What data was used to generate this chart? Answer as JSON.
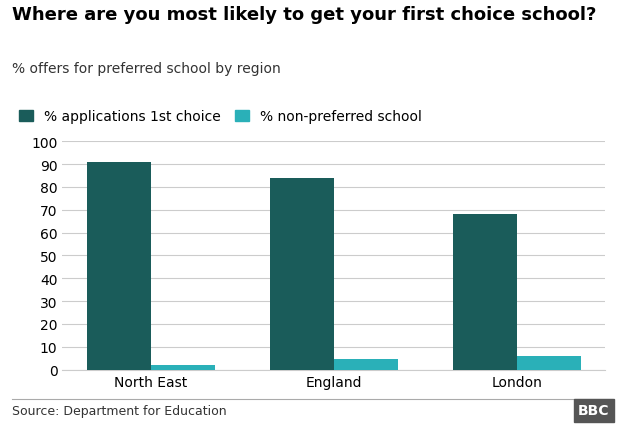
{
  "title": "Where are you most likely to get your first choice school?",
  "subtitle": "% offers for preferred school by region",
  "source": "Source: Department for Education",
  "categories": [
    "North East",
    "England",
    "London"
  ],
  "series": [
    {
      "label": "% applications 1st choice",
      "values": [
        91,
        84,
        68
      ],
      "color": "#1a5c5a"
    },
    {
      "label": "% non-preferred school",
      "values": [
        2,
        4.5,
        6
      ],
      "color": "#2ab0b8"
    }
  ],
  "ylim": [
    0,
    100
  ],
  "yticks": [
    0,
    10,
    20,
    30,
    40,
    50,
    60,
    70,
    80,
    90,
    100
  ],
  "bar_width": 0.35,
  "background_color": "#ffffff",
  "grid_color": "#cccccc",
  "title_fontsize": 13,
  "subtitle_fontsize": 10,
  "tick_fontsize": 10,
  "legend_fontsize": 10,
  "source_fontsize": 9,
  "bbc_label": "BBC",
  "bbc_bg": "#555555",
  "bbc_fg": "#ffffff"
}
